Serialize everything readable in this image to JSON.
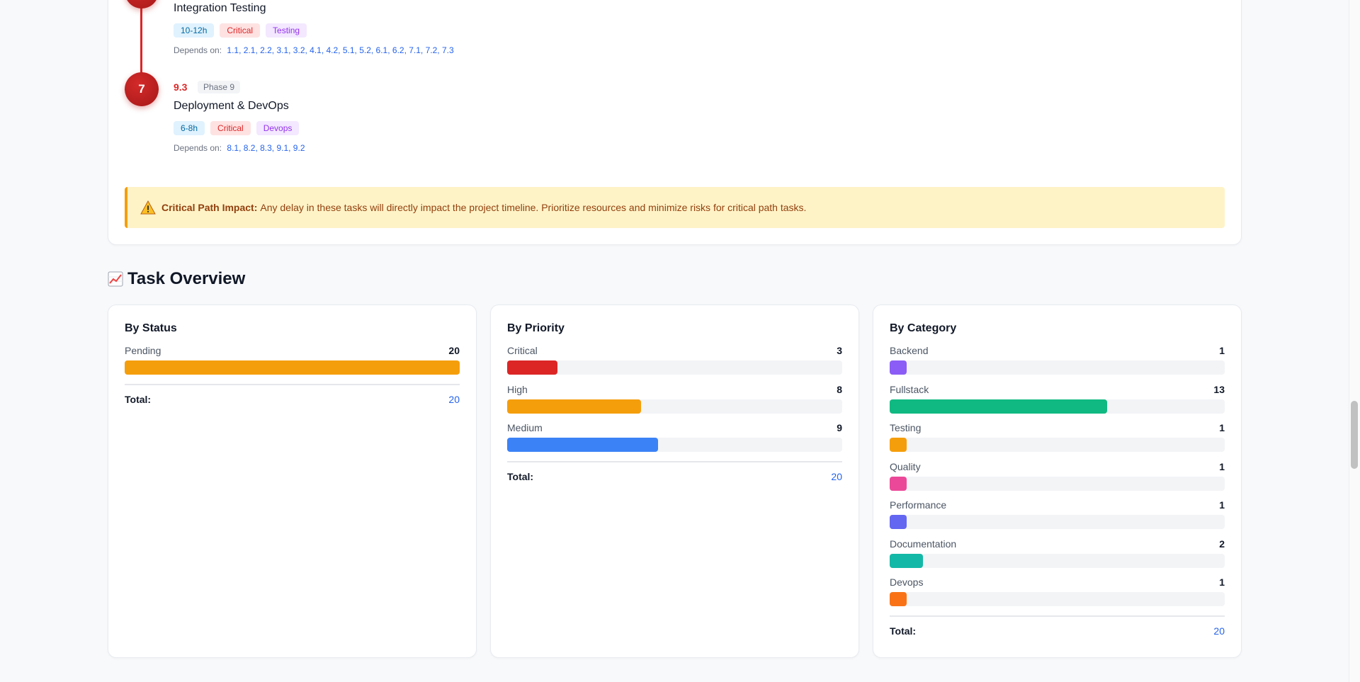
{
  "critical_path": {
    "prev_task": {
      "title": "Integration Testing",
      "tags": [
        "10-12h",
        "Critical",
        "Testing"
      ],
      "depends_label": "Depends on:",
      "depends": "1.1, 2.1, 2.2, 3.1, 3.2, 4.1, 4.2, 5.1, 5.2, 6.1, 6.2, 7.1, 7.2, 7.3"
    },
    "task": {
      "step": "7",
      "id": "9.3",
      "phase": "Phase 9",
      "title": "Deployment & DevOps",
      "tags": [
        "6-8h",
        "Critical",
        "Devops"
      ],
      "depends_label": "Depends on:",
      "depends": "8.1, 8.2, 8.3, 9.1, 9.2"
    },
    "warning": {
      "title": "Critical Path Impact:",
      "text": "Any delay in these tasks will directly impact the project timeline. Prioritize resources and minimize risks for critical path tasks."
    }
  },
  "overview": {
    "title": "Task Overview",
    "total_label": "Total:",
    "by_status": {
      "title": "By Status",
      "items": [
        {
          "label": "Pending",
          "count": 20,
          "fraction": 1.0,
          "color": "#f59e0b"
        }
      ],
      "total": 20
    },
    "by_priority": {
      "title": "By Priority",
      "items": [
        {
          "label": "Critical",
          "count": 3,
          "fraction": 0.15,
          "color": "#dc2626"
        },
        {
          "label": "High",
          "count": 8,
          "fraction": 0.4,
          "color": "#f59e0b"
        },
        {
          "label": "Medium",
          "count": 9,
          "fraction": 0.45,
          "color": "#3b82f6"
        }
      ],
      "total": 20
    },
    "by_category": {
      "title": "By Category",
      "items": [
        {
          "label": "Backend",
          "count": 1,
          "fraction": 0.05,
          "color": "#8b5cf6"
        },
        {
          "label": "Fullstack",
          "count": 13,
          "fraction": 0.65,
          "color": "#10b981"
        },
        {
          "label": "Testing",
          "count": 1,
          "fraction": 0.05,
          "color": "#f59e0b"
        },
        {
          "label": "Quality",
          "count": 1,
          "fraction": 0.05,
          "color": "#ec4899"
        },
        {
          "label": "Performance",
          "count": 1,
          "fraction": 0.05,
          "color": "#6366f1"
        },
        {
          "label": "Documentation",
          "count": 2,
          "fraction": 0.1,
          "color": "#14b8a6"
        },
        {
          "label": "Devops",
          "count": 1,
          "fraction": 0.05,
          "color": "#f97316"
        }
      ],
      "total": 20
    }
  }
}
